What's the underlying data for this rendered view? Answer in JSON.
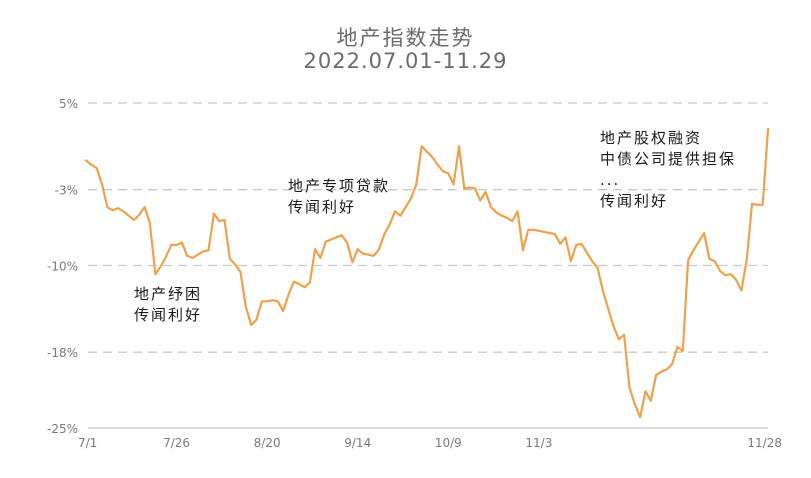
{
  "chart_data": {
    "type": "line",
    "title": "地产指数走势",
    "subtitle": "2022.07.01-11.29",
    "xlabel": "",
    "ylabel": "",
    "ylim": [
      -25,
      5
    ],
    "y_ticks": [
      "5%",
      "-3%",
      "-10%",
      "-18%",
      "-25%"
    ],
    "y_tick_values": [
      5,
      -3,
      -10,
      -18,
      -25
    ],
    "x_ticks": [
      "7/1",
      "7/26",
      "8/20",
      "9/14",
      "10/9",
      "11/3",
      "11/28"
    ],
    "x_tick_index": [
      0,
      17,
      34,
      51,
      68,
      85,
      102
    ],
    "grid": true,
    "color": "#f0a04b",
    "values": [
      -0.3,
      -0.7,
      -1.0,
      -2.5,
      -4.6,
      -4.9,
      -4.7,
      -5.0,
      -5.4,
      -5.8,
      -5.3,
      -4.6,
      -6.1,
      -10.8,
      -10.1,
      -9.2,
      -8.1,
      -8.1,
      -7.9,
      -9.1,
      -9.3,
      -9.0,
      -8.7,
      -8.6,
      -5.2,
      -5.9,
      -5.8,
      -9.4,
      -9.9,
      -10.6,
      -13.8,
      -15.5,
      -15.0,
      -13.3,
      -13.3,
      -13.2,
      -13.3,
      -14.2,
      -12.7,
      -11.5,
      -11.7,
      -12.0,
      -11.6,
      -8.5,
      -9.3,
      -7.8,
      -7.6,
      -7.4,
      -7.2,
      -7.9,
      -9.7,
      -8.5,
      -8.9,
      -9.0,
      -9.1,
      -8.5,
      -7.1,
      -6.2,
      -5.0,
      -5.4,
      -4.6,
      -3.8,
      -2.5,
      1.0,
      0.5,
      0.0,
      -0.7,
      -1.3,
      -1.5,
      -2.5,
      1.0,
      -2.9,
      -2.8,
      -2.9,
      -4.0,
      -3.2,
      -4.6,
      -5.1,
      -5.4,
      -5.6,
      -5.9,
      -5.0,
      -8.6,
      -6.7,
      -6.7,
      -6.8,
      -6.9,
      -7.0,
      -7.1,
      -8.0,
      -7.4,
      -9.6,
      -8.1,
      -8.0,
      -8.8,
      -9.6,
      -10.2,
      -12.3,
      -14.0,
      -15.6,
      -16.8,
      -16.4,
      -21.3,
      -22.8,
      -24.0,
      -21.6,
      -22.5,
      -20.1,
      -19.8,
      -19.6,
      -19.1,
      -17.5,
      -17.9,
      -9.5,
      -8.6,
      -7.8,
      -7.0,
      -9.4,
      -9.6,
      -10.5,
      -10.9,
      -10.8,
      -11.3,
      -12.3,
      -9.5,
      -4.3,
      -4.4,
      -4.4,
      2.6
    ]
  },
  "annotations": [
    {
      "lines": [
        "地产纾困",
        "传闻利好"
      ]
    },
    {
      "lines": [
        "地产专项贷款",
        "传闻利好"
      ]
    },
    {
      "lines": [
        "地产股权融资",
        "中债公司提供担保",
        "...",
        "传闻利好"
      ]
    }
  ]
}
